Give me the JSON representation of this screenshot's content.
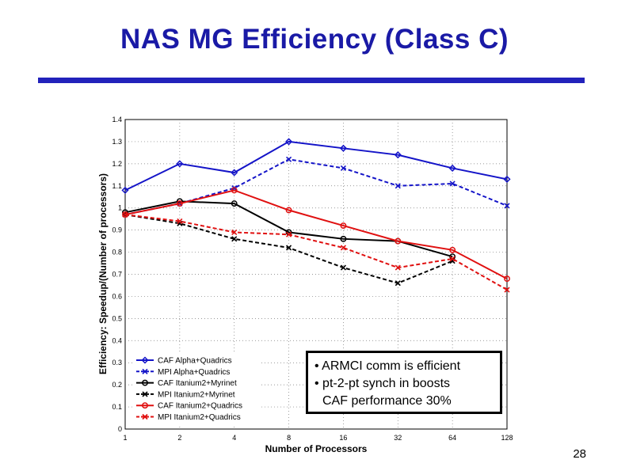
{
  "slide": {
    "title": "NAS MG Efficiency (Class C)",
    "page_number": "28",
    "colors": {
      "title": "#1a1aa6",
      "rule": "#2222bb",
      "blue": "#1414c8",
      "black": "#000000",
      "red": "#e01010"
    }
  },
  "note": {
    "lines": [
      "• ARMCI comm is efficient",
      "• pt-2-pt synch in boosts",
      "CAF performance 30%"
    ]
  },
  "chart_data": {
    "type": "line",
    "title": "",
    "xlabel": "Number of Processors",
    "ylabel": "Efficiency: Speedup/(Number of processors)",
    "categories": [
      "1",
      "2",
      "4",
      "8",
      "16",
      "32",
      "64",
      "128"
    ],
    "ylim": [
      0,
      1.4
    ],
    "yticks": [
      "0",
      "0.1",
      "0.2",
      "0.3",
      "0.4",
      "0.5",
      "0.6",
      "0.7",
      "0.8",
      "0.9",
      "1",
      "1.1",
      "1.2",
      "1.3",
      "1.4"
    ],
    "grid": true,
    "legend_position": "bottom-left",
    "series": [
      {
        "name": "CAF Alpha+Quadrics",
        "color": "#1414c8",
        "dash": "solid",
        "marker": "diamond",
        "values": [
          1.08,
          1.2,
          1.16,
          1.3,
          1.27,
          1.24,
          1.18,
          1.13
        ]
      },
      {
        "name": "MPI Alpha+Quadrics",
        "color": "#1414c8",
        "dash": "dashed",
        "marker": "x",
        "values": [
          0.97,
          1.02,
          1.09,
          1.22,
          1.18,
          1.1,
          1.11,
          1.01
        ]
      },
      {
        "name": "CAF Itanium2+Myrinet",
        "color": "#000000",
        "dash": "solid",
        "marker": "circle",
        "values": [
          0.98,
          1.03,
          1.02,
          0.89,
          0.86,
          0.85,
          0.78,
          null
        ]
      },
      {
        "name": "MPI Itanium2+Myrinet",
        "color": "#000000",
        "dash": "dashed",
        "marker": "x",
        "values": [
          0.97,
          0.93,
          0.86,
          0.82,
          0.73,
          0.66,
          0.76,
          null
        ]
      },
      {
        "name": "CAF Itanium2+Quadrics",
        "color": "#e01010",
        "dash": "solid",
        "marker": "circle",
        "values": [
          0.97,
          1.02,
          1.08,
          0.99,
          0.92,
          0.85,
          0.81,
          0.68
        ]
      },
      {
        "name": "MPI Itanium2+Quadrics",
        "color": "#e01010",
        "dash": "dashed",
        "marker": "x",
        "values": [
          0.97,
          0.94,
          0.89,
          0.88,
          0.82,
          0.73,
          0.77,
          0.63
        ]
      }
    ]
  }
}
